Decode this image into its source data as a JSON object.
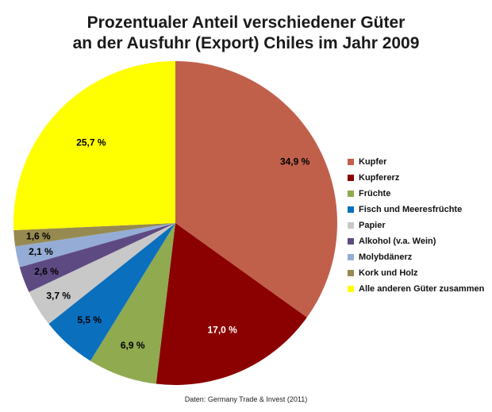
{
  "chart_data": {
    "type": "pie",
    "title": "Prozentualer Anteil verschiedener Güter",
    "subtitle": "an der Ausfuhr (Export) Chiles im Jahr 2009",
    "source": "Daten: Germany Trade & Invest (2011)",
    "legend_position": "right",
    "slices": [
      {
        "name": "Kupfer",
        "value": 34.9,
        "label": "34,9 %",
        "color": "#c0604b"
      },
      {
        "name": "Kupfererz",
        "value": 17.0,
        "label": "17,0 %",
        "color": "#8b0000"
      },
      {
        "name": "Früchte",
        "value": 6.9,
        "label": "6,9 %",
        "color": "#8faa4f"
      },
      {
        "name": "Fisch und Meeresfrüchte",
        "value": 5.5,
        "label": "5,5 %",
        "color": "#0a6fbd"
      },
      {
        "name": "Papier",
        "value": 3.7,
        "label": "3,7 %",
        "color": "#c8c8c8"
      },
      {
        "name": "Alkohol (v.a. Wein)",
        "value": 2.6,
        "label": "2,6 %",
        "color": "#5e4a82"
      },
      {
        "name": "Molybdänerz",
        "value": 2.1,
        "label": "2,1 %",
        "color": "#95add6"
      },
      {
        "name": "Kork und Holz",
        "value": 1.6,
        "label": "1,6 %",
        "color": "#968a50"
      },
      {
        "name": "Alle anderen Güter zusammen",
        "value": 25.7,
        "label": "25,7 %",
        "color": "#ffff00"
      }
    ]
  }
}
